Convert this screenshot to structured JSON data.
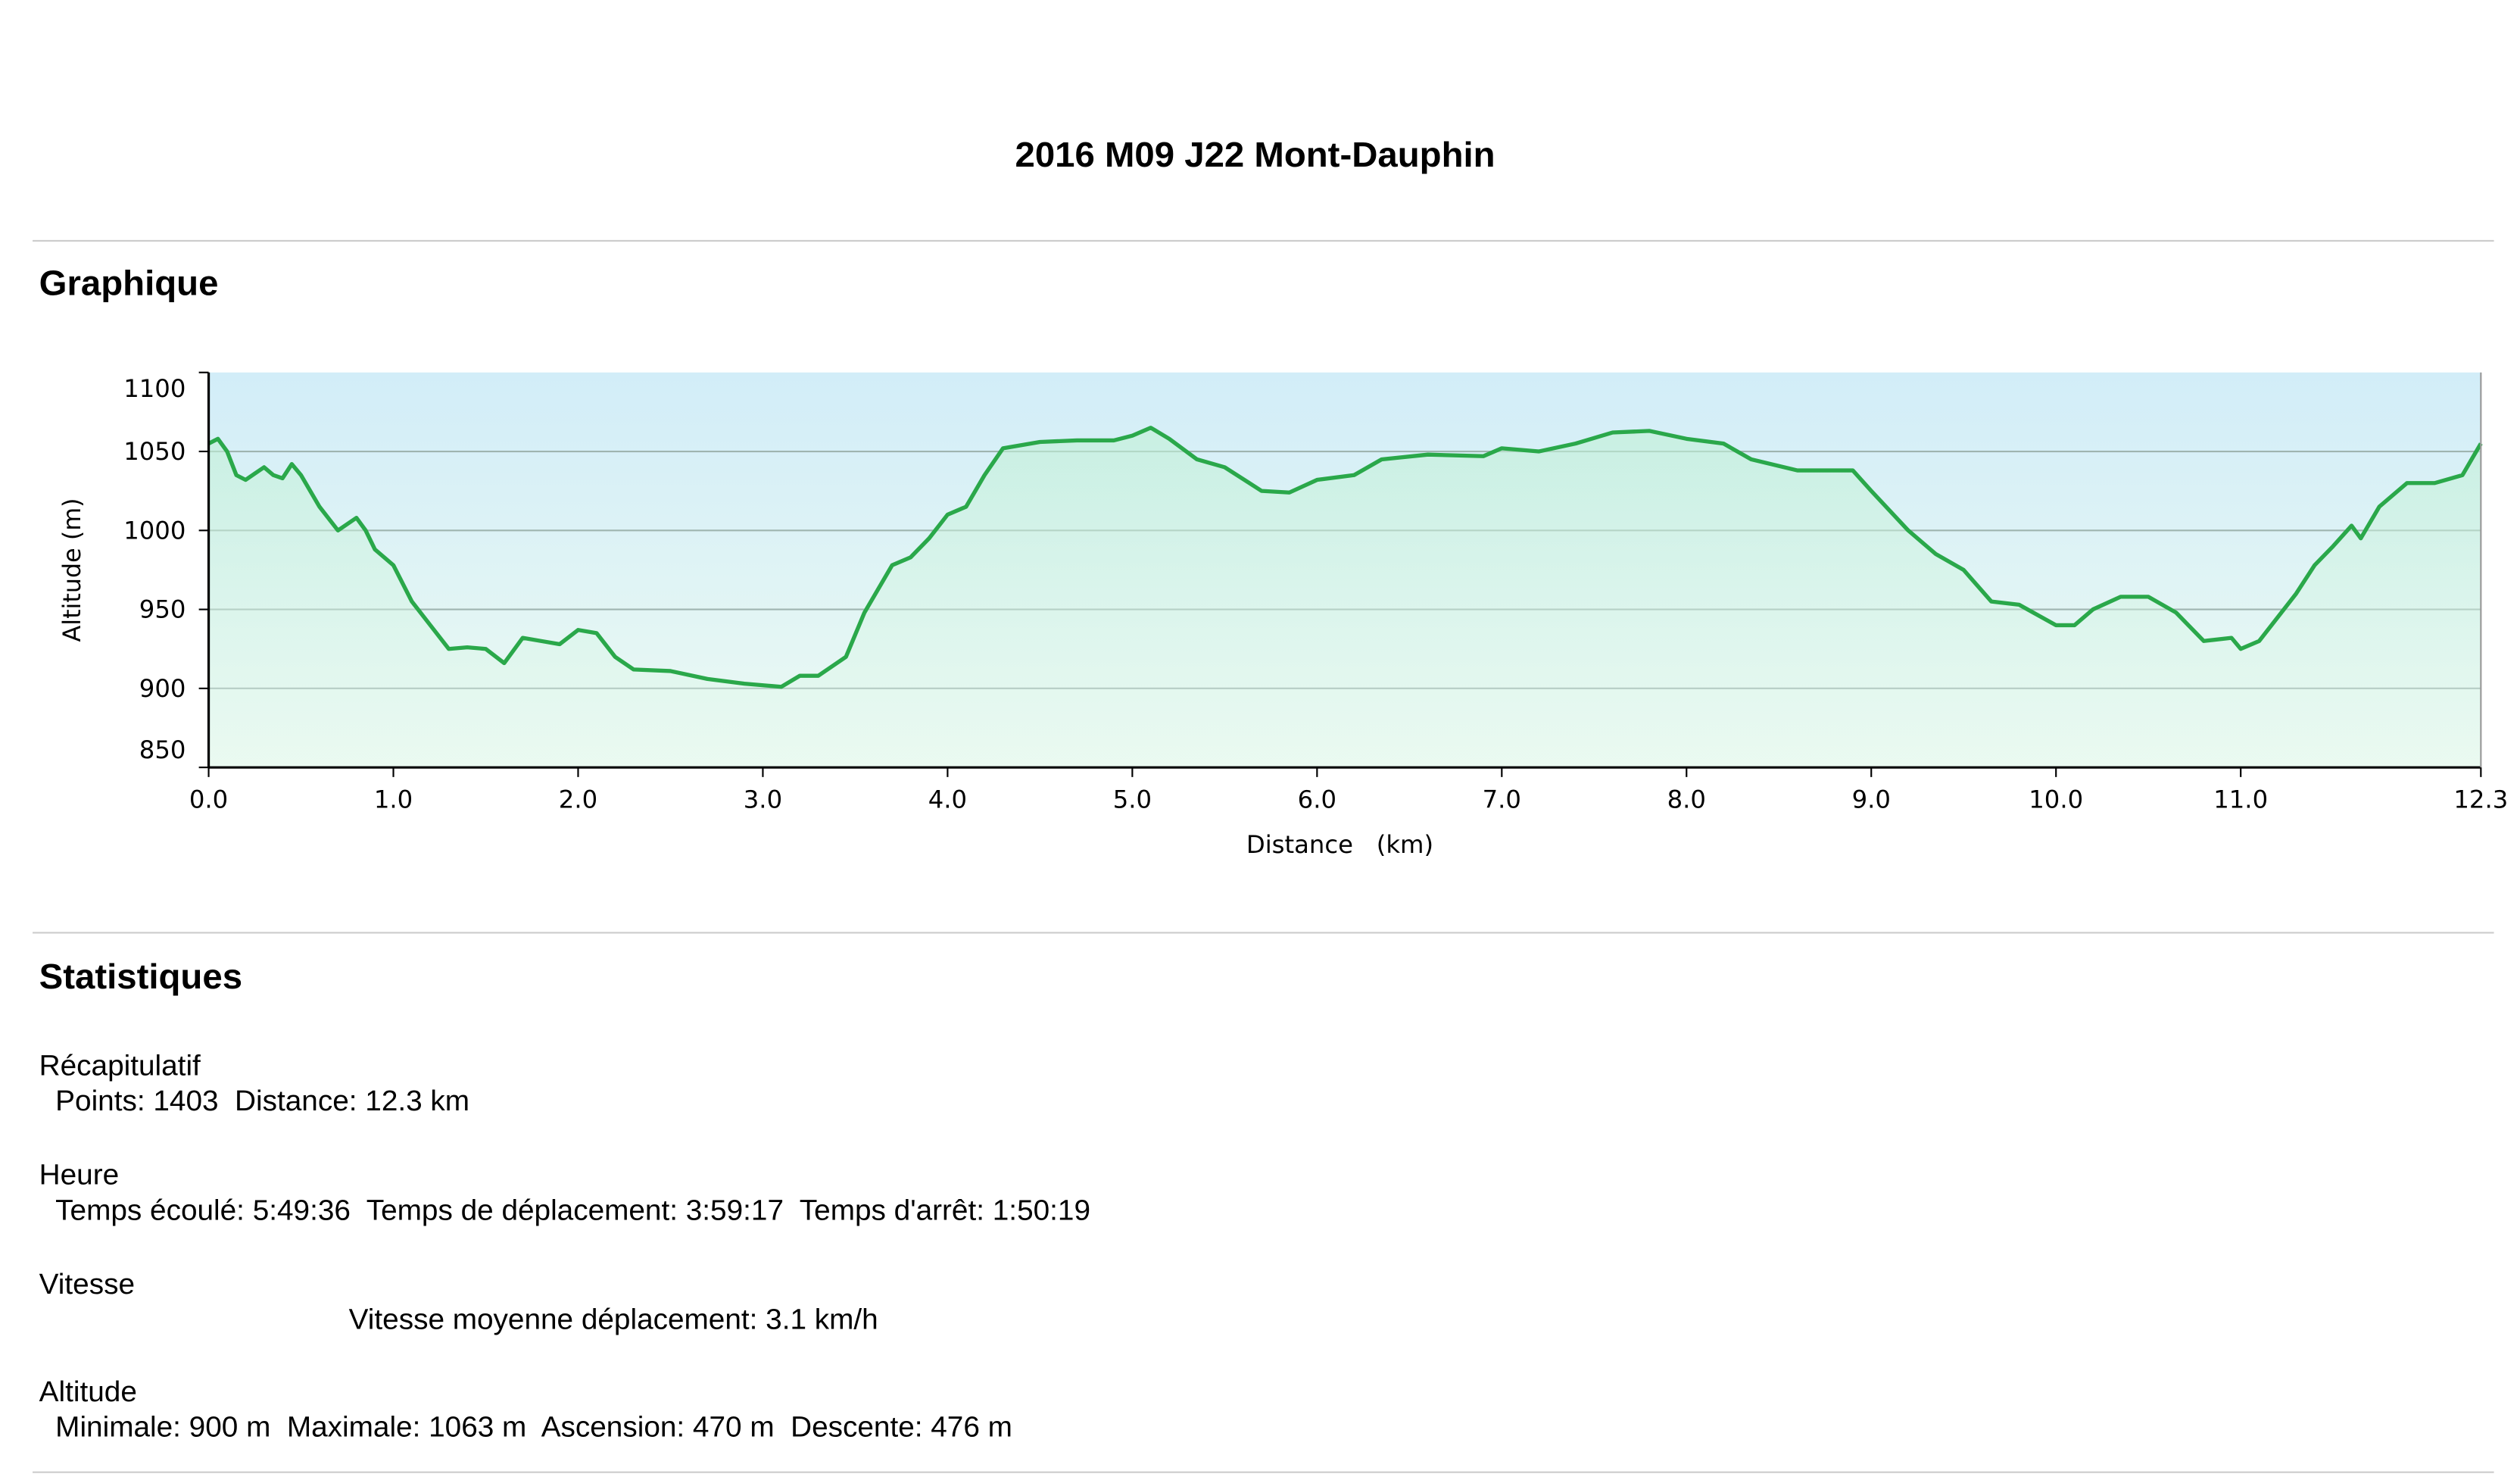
{
  "header": {
    "title": "2016 M09 J22 Mont-Dauphin"
  },
  "sections": {
    "chart": "Graphique",
    "stats": "Statistiques"
  },
  "stats": [
    {
      "heading": "Récapitulatif",
      "text": "Points: 1403  Distance: 12.3 km"
    },
    {
      "heading": "Heure",
      "text": "Temps écoulé: 5:49:36  Temps de déplacement: 3:59:17  Temps d'arrêt: 1:50:19"
    },
    {
      "heading": "Vitesse",
      "text": "Vitesse moyenne déplacement: 3.1 km/h"
    },
    {
      "heading": "Altitude",
      "text": "Minimale: 900 m  Maximale: 1063 m  Ascension: 470 m  Descente: 476 m"
    }
  ],
  "chart_data": {
    "type": "area",
    "x_label": "Distance   (km)",
    "y_label": "Altitude (m)",
    "color": "#2aa84a",
    "grid": true,
    "xlim": [
      0,
      12.3
    ],
    "ylim": [
      850,
      1100
    ],
    "xticks": [
      {
        "value": 0,
        "label": "0.0"
      },
      {
        "value": 1,
        "label": "1.0"
      },
      {
        "value": 2,
        "label": "2.0"
      },
      {
        "value": 3,
        "label": "3.0"
      },
      {
        "value": 4,
        "label": "4.0"
      },
      {
        "value": 5,
        "label": "5.0"
      },
      {
        "value": 6,
        "label": "6.0"
      },
      {
        "value": 7,
        "label": "7.0"
      },
      {
        "value": 8,
        "label": "8.0"
      },
      {
        "value": 9,
        "label": "9.0"
      },
      {
        "value": 10,
        "label": "10.0"
      },
      {
        "value": 11,
        "label": "11.0"
      },
      12.3
    ],
    "yticks": [
      850,
      900,
      950,
      1000,
      1050,
      1100
    ],
    "x": [
      0,
      0.05,
      0.1,
      0.15,
      0.2,
      0.25,
      0.3,
      0.35,
      0.4,
      0.45,
      0.5,
      0.6,
      0.7,
      0.8,
      0.85,
      0.9,
      1.0,
      1.1,
      1.2,
      1.3,
      1.4,
      1.5,
      1.6,
      1.7,
      1.8,
      1.9,
      2.0,
      2.1,
      2.2,
      2.3,
      2.5,
      2.7,
      2.9,
      3.1,
      3.2,
      3.3,
      3.45,
      3.55,
      3.7,
      3.8,
      3.9,
      4.0,
      4.1,
      4.2,
      4.3,
      4.5,
      4.7,
      4.9,
      5.0,
      5.1,
      5.2,
      5.35,
      5.5,
      5.7,
      5.85,
      6.0,
      6.2,
      6.35,
      6.6,
      6.9,
      7.0,
      7.2,
      7.4,
      7.6,
      7.8,
      8.0,
      8.2,
      8.35,
      8.6,
      8.9,
      9.0,
      9.2,
      9.35,
      9.5,
      9.65,
      9.8,
      10.0,
      10.1,
      10.2,
      10.35,
      10.5,
      10.65,
      10.8,
      10.95,
      11.0,
      11.1,
      11.3,
      11.4,
      11.5,
      11.6,
      11.65,
      11.75,
      11.9,
      12.05,
      12.2,
      12.25,
      12.3
    ],
    "values": [
      1055,
      1058,
      1050,
      1035,
      1032,
      1036,
      1040,
      1035,
      1033,
      1042,
      1035,
      1015,
      1000,
      1008,
      1000,
      988,
      978,
      955,
      940,
      925,
      926,
      925,
      916,
      932,
      930,
      928,
      937,
      935,
      920,
      912,
      911,
      906,
      903,
      901,
      908,
      908,
      920,
      948,
      978,
      983,
      995,
      1010,
      1015,
      1035,
      1052,
      1056,
      1057,
      1057,
      1060,
      1065,
      1058,
      1045,
      1040,
      1025,
      1024,
      1032,
      1035,
      1045,
      1048,
      1047,
      1052,
      1050,
      1055,
      1062,
      1063,
      1058,
      1055,
      1045,
      1038,
      1038,
      1025,
      1000,
      985,
      975,
      955,
      953,
      940,
      940,
      950,
      958,
      958,
      948,
      930,
      932,
      925,
      930,
      960,
      978,
      990,
      1003,
      995,
      1015,
      1030,
      1030,
      1035,
      1045,
      1055
    ]
  }
}
